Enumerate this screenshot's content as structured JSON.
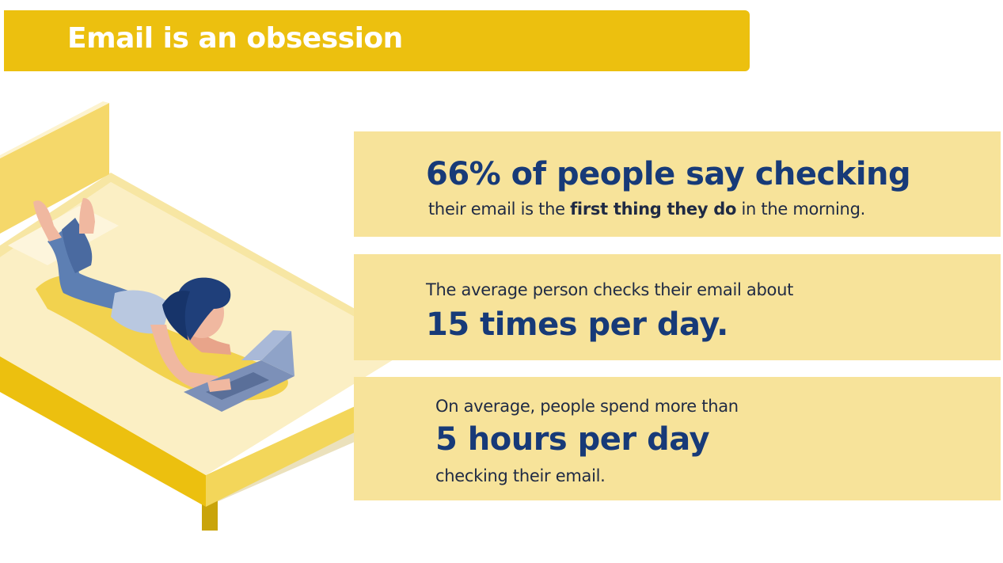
{
  "title": "Email is an obsession",
  "stats": [
    {
      "headline": "66% of people say checking",
      "line_pre": "their email is the ",
      "line_bold": "first thing they do",
      "line_post": " in the morning."
    },
    {
      "intro": "The average person checks their email about",
      "headline": "15 times per day."
    },
    {
      "intro": "On average, people spend more than",
      "headline": "5 hours per day",
      "outro": "checking their email."
    }
  ],
  "colors": {
    "banner": "#ecc00f",
    "panel": "#f7e39a",
    "headline": "#173a78",
    "body_text": "#1f2a44"
  }
}
